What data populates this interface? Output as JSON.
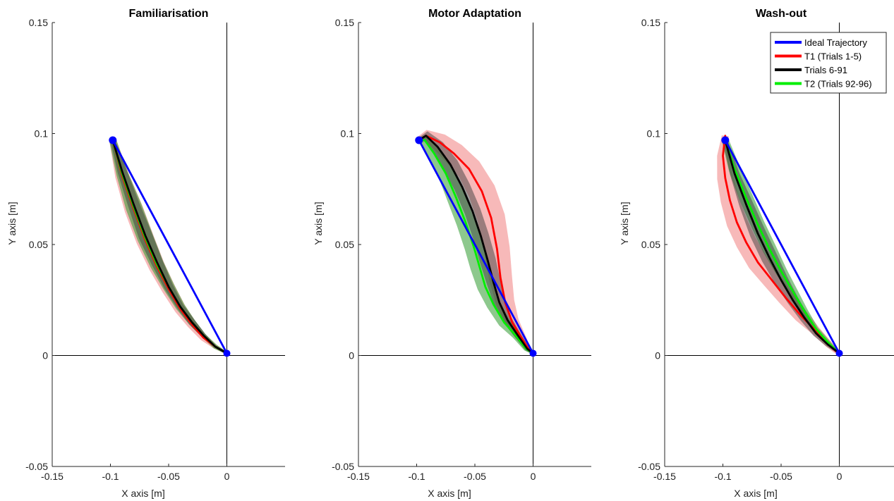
{
  "chart_data": [
    {
      "type": "line",
      "title": "Familiarisation",
      "xlabel": "X axis [m]",
      "ylabel": "Y axis [m]",
      "xlim": [
        -0.15,
        0.05
      ],
      "ylim": [
        -0.05,
        0.15
      ],
      "xticks": [
        -0.15,
        -0.1,
        -0.05,
        0
      ],
      "yticks": [
        -0.05,
        0,
        0.05,
        0.1,
        0.15
      ],
      "xtick_labels": [
        "-0.15",
        "-0.1",
        "-0.05",
        "0"
      ],
      "ytick_labels": [
        "-0.05",
        "0",
        "0.05",
        "0.1",
        "0.15"
      ],
      "markers": [
        {
          "x": -0.098,
          "y": 0.097
        },
        {
          "x": 0.0,
          "y": 0.001
        }
      ],
      "series": [
        {
          "key": "ideal",
          "color": "#0000ff",
          "x": [
            -0.098,
            0.0
          ],
          "y": [
            0.097,
            0.001
          ]
        },
        {
          "key": "t1",
          "color": "#ff0000",
          "x": [
            -0.098,
            -0.09,
            -0.08,
            -0.07,
            -0.06,
            -0.05,
            -0.04,
            -0.03,
            -0.02,
            -0.01,
            0.0
          ],
          "y": [
            0.097,
            0.081,
            0.066,
            0.052,
            0.04,
            0.03,
            0.021,
            0.014,
            0.008,
            0.004,
            0.001
          ],
          "band": [
            0.003,
            0.006,
            0.008,
            0.008,
            0.007,
            0.006,
            0.005,
            0.004,
            0.003,
            0.002,
            0.001
          ]
        },
        {
          "key": "t2",
          "color": "#00ee00",
          "x": [
            -0.098,
            -0.09,
            -0.08,
            -0.07,
            -0.06,
            -0.05,
            -0.04,
            -0.03,
            -0.02,
            -0.01,
            0.0
          ],
          "y": [
            0.097,
            0.082,
            0.067,
            0.053,
            0.041,
            0.031,
            0.022,
            0.015,
            0.009,
            0.004,
            0.001
          ],
          "band": [
            0.003,
            0.005,
            0.007,
            0.007,
            0.006,
            0.005,
            0.004,
            0.003,
            0.002,
            0.002,
            0.001
          ]
        },
        {
          "key": "mid",
          "color": "#000000",
          "x": [
            -0.098,
            -0.09,
            -0.08,
            -0.07,
            -0.06,
            -0.05,
            -0.04,
            -0.03,
            -0.02,
            -0.01,
            0.0
          ],
          "y": [
            0.097,
            0.083,
            0.068,
            0.054,
            0.042,
            0.031,
            0.022,
            0.015,
            0.009,
            0.004,
            0.001
          ],
          "band": [
            0.002,
            0.004,
            0.005,
            0.006,
            0.005,
            0.004,
            0.003,
            0.003,
            0.002,
            0.001,
            0.001
          ]
        }
      ]
    },
    {
      "type": "line",
      "title": "Motor Adaptation",
      "xlabel": "X axis [m]",
      "ylabel": "Y axis [m]",
      "xlim": [
        -0.15,
        0.05
      ],
      "ylim": [
        -0.05,
        0.15
      ],
      "xticks": [
        -0.15,
        -0.1,
        -0.05,
        0
      ],
      "yticks": [
        -0.05,
        0,
        0.05,
        0.1,
        0.15
      ],
      "xtick_labels": [
        "-0.15",
        "-0.1",
        "-0.05",
        "0"
      ],
      "ytick_labels": [
        "-0.05",
        "0",
        "0.05",
        "0.1",
        "0.15"
      ],
      "markers": [
        {
          "x": -0.098,
          "y": 0.097
        },
        {
          "x": 0.0,
          "y": 0.001
        }
      ],
      "series": [
        {
          "key": "ideal",
          "color": "#0000ff",
          "x": [
            -0.098,
            0.0
          ],
          "y": [
            0.097,
            0.001
          ]
        },
        {
          "key": "t1",
          "color": "#ff0000",
          "x": [
            -0.098,
            -0.092,
            -0.08,
            -0.068,
            -0.055,
            -0.044,
            -0.036,
            -0.031,
            -0.028,
            -0.024,
            -0.018,
            -0.01,
            -0.004,
            0.0
          ],
          "y": [
            0.097,
            0.099,
            0.096,
            0.091,
            0.084,
            0.074,
            0.062,
            0.048,
            0.035,
            0.024,
            0.015,
            0.008,
            0.003,
            0.001
          ],
          "band": [
            0.003,
            0.005,
            0.008,
            0.01,
            0.011,
            0.012,
            0.012,
            0.011,
            0.01,
            0.008,
            0.006,
            0.004,
            0.002,
            0.001
          ]
        },
        {
          "key": "t2",
          "color": "#00ee00",
          "x": [
            -0.098,
            -0.093,
            -0.085,
            -0.075,
            -0.066,
            -0.058,
            -0.051,
            -0.046,
            -0.041,
            -0.034,
            -0.025,
            -0.015,
            -0.006,
            0.0
          ],
          "y": [
            0.097,
            0.097,
            0.091,
            0.082,
            0.071,
            0.06,
            0.049,
            0.04,
            0.031,
            0.023,
            0.015,
            0.009,
            0.003,
            0.001
          ],
          "band": [
            0.003,
            0.004,
            0.006,
            0.007,
            0.008,
            0.008,
            0.008,
            0.008,
            0.007,
            0.006,
            0.005,
            0.003,
            0.002,
            0.001
          ]
        },
        {
          "key": "mid",
          "color": "#000000",
          "x": [
            -0.098,
            -0.092,
            -0.082,
            -0.071,
            -0.061,
            -0.052,
            -0.045,
            -0.039,
            -0.034,
            -0.029,
            -0.022,
            -0.013,
            -0.005,
            0.0
          ],
          "y": [
            0.097,
            0.099,
            0.094,
            0.086,
            0.076,
            0.065,
            0.054,
            0.043,
            0.033,
            0.024,
            0.016,
            0.009,
            0.003,
            0.001
          ],
          "band": [
            0.002,
            0.004,
            0.006,
            0.007,
            0.007,
            0.007,
            0.007,
            0.007,
            0.006,
            0.005,
            0.004,
            0.003,
            0.002,
            0.001
          ]
        }
      ]
    },
    {
      "type": "line",
      "title": "Wash-out",
      "xlabel": "X axis [m]",
      "ylabel": "Y axis [m]",
      "xlim": [
        -0.15,
        0.05
      ],
      "ylim": [
        -0.05,
        0.15
      ],
      "xticks": [
        -0.15,
        -0.1,
        -0.05,
        0
      ],
      "yticks": [
        -0.05,
        0,
        0.05,
        0.1,
        0.15
      ],
      "xtick_labels": [
        "-0.15",
        "-0.1",
        "-0.05",
        "0"
      ],
      "ytick_labels": [
        "-0.05",
        "0",
        "0.05",
        "0.1",
        "0.15"
      ],
      "markers": [
        {
          "x": -0.098,
          "y": 0.097
        },
        {
          "x": 0.0,
          "y": 0.001
        }
      ],
      "legend": {
        "position": "top-right",
        "entries": [
          {
            "key": "ideal",
            "label": "Ideal Trajectory",
            "color": "#0000ff"
          },
          {
            "key": "t1",
            "label": "T1 (Trials 1-5)",
            "color": "#ff0000"
          },
          {
            "key": "mid",
            "label": "Trials 6-91",
            "color": "#000000"
          },
          {
            "key": "t2",
            "label": "T2 (Trials 92-96)",
            "color": "#00ee00"
          }
        ]
      },
      "series": [
        {
          "key": "ideal",
          "color": "#0000ff",
          "x": [
            -0.098,
            0.0
          ],
          "y": [
            0.097,
            0.001
          ]
        },
        {
          "key": "t1",
          "color": "#ff0000",
          "x": [
            -0.098,
            -0.1,
            -0.098,
            -0.094,
            -0.088,
            -0.08,
            -0.07,
            -0.058,
            -0.046,
            -0.033,
            -0.02,
            -0.009,
            -0.003,
            0.0
          ],
          "y": [
            0.099,
            0.09,
            0.08,
            0.07,
            0.06,
            0.051,
            0.042,
            0.034,
            0.026,
            0.018,
            0.011,
            0.005,
            0.002,
            0.001
          ],
          "band": [
            0.003,
            0.005,
            0.007,
            0.008,
            0.009,
            0.009,
            0.009,
            0.008,
            0.007,
            0.006,
            0.004,
            0.003,
            0.002,
            0.001
          ]
        },
        {
          "key": "t2",
          "color": "#00ee00",
          "x": [
            -0.098,
            -0.09,
            -0.08,
            -0.07,
            -0.06,
            -0.05,
            -0.04,
            -0.03,
            -0.02,
            -0.01,
            0.0
          ],
          "y": [
            0.097,
            0.084,
            0.071,
            0.059,
            0.048,
            0.038,
            0.029,
            0.02,
            0.012,
            0.006,
            0.001
          ],
          "band": [
            0.003,
            0.005,
            0.006,
            0.006,
            0.006,
            0.005,
            0.004,
            0.003,
            0.002,
            0.002,
            0.001
          ]
        },
        {
          "key": "mid",
          "color": "#000000",
          "x": [
            -0.098,
            -0.09,
            -0.08,
            -0.07,
            -0.06,
            -0.05,
            -0.04,
            -0.03,
            -0.02,
            -0.01,
            0.0
          ],
          "y": [
            0.097,
            0.082,
            0.068,
            0.055,
            0.044,
            0.034,
            0.025,
            0.017,
            0.01,
            0.005,
            0.001
          ],
          "band": [
            0.002,
            0.004,
            0.006,
            0.007,
            0.007,
            0.006,
            0.005,
            0.004,
            0.003,
            0.002,
            0.001
          ]
        }
      ]
    }
  ]
}
